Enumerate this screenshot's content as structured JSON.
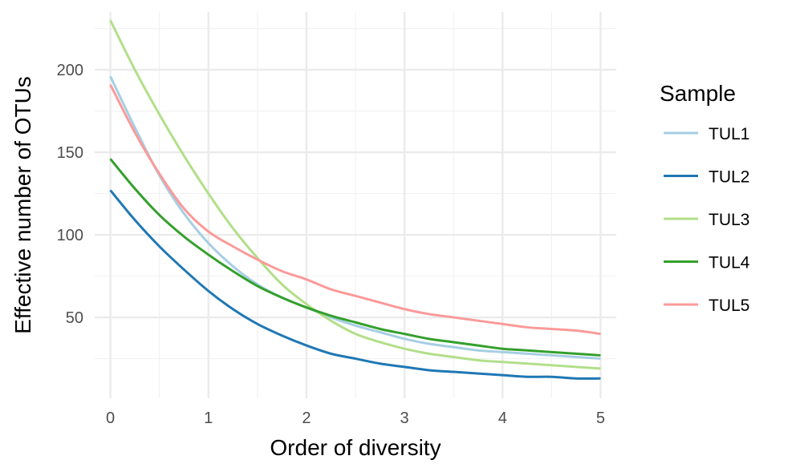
{
  "chart_data": {
    "type": "line",
    "title": "",
    "xlabel": "Order of diversity",
    "ylabel": "Effective number of OTUs",
    "xlim": [
      -0.16,
      5.16
    ],
    "ylim": [
      1,
      235
    ],
    "x_ticks": [
      0,
      1,
      2,
      3,
      4,
      5
    ],
    "y_ticks": [
      50,
      100,
      150,
      200
    ],
    "grid": true,
    "legend": {
      "title": "Sample",
      "placement": "right"
    },
    "x": [
      0,
      0.25,
      0.5,
      0.75,
      1,
      1.25,
      1.5,
      1.75,
      2,
      2.25,
      2.5,
      2.75,
      3,
      3.25,
      3.5,
      3.75,
      4,
      4.25,
      4.5,
      4.75,
      5
    ],
    "series": [
      {
        "name": "TUL1",
        "color": "#a6cee3",
        "values": [
          196,
          165,
          136,
          113,
          95,
          81,
          70,
          62,
          56,
          50,
          45,
          41,
          37,
          34,
          32,
          30,
          29,
          28,
          27,
          26,
          25
        ]
      },
      {
        "name": "TUL2",
        "color": "#1f78b4",
        "values": [
          127,
          109,
          93,
          79,
          66,
          55,
          46,
          39,
          33,
          28,
          25,
          22,
          20,
          18,
          17,
          16,
          15,
          14,
          14,
          13,
          13
        ]
      },
      {
        "name": "TUL3",
        "color": "#b2df8a",
        "values": [
          230,
          200,
          173,
          148,
          125,
          104,
          86,
          70,
          58,
          48,
          40,
          35,
          31,
          28,
          26,
          24,
          23,
          22,
          21,
          20,
          19
        ]
      },
      {
        "name": "TUL4",
        "color": "#33a02c",
        "values": [
          146,
          128,
          112,
          99,
          88,
          78,
          69,
          62,
          56,
          51,
          47,
          43,
          40,
          37,
          35,
          33,
          31,
          30,
          29,
          28,
          27
        ]
      },
      {
        "name": "TUL5",
        "color": "#fb9a99",
        "values": [
          191,
          162,
          137,
          116,
          102,
          93,
          85,
          78,
          73,
          67,
          63,
          59,
          55,
          52,
          50,
          48,
          46,
          44,
          43,
          42,
          40
        ]
      }
    ]
  }
}
